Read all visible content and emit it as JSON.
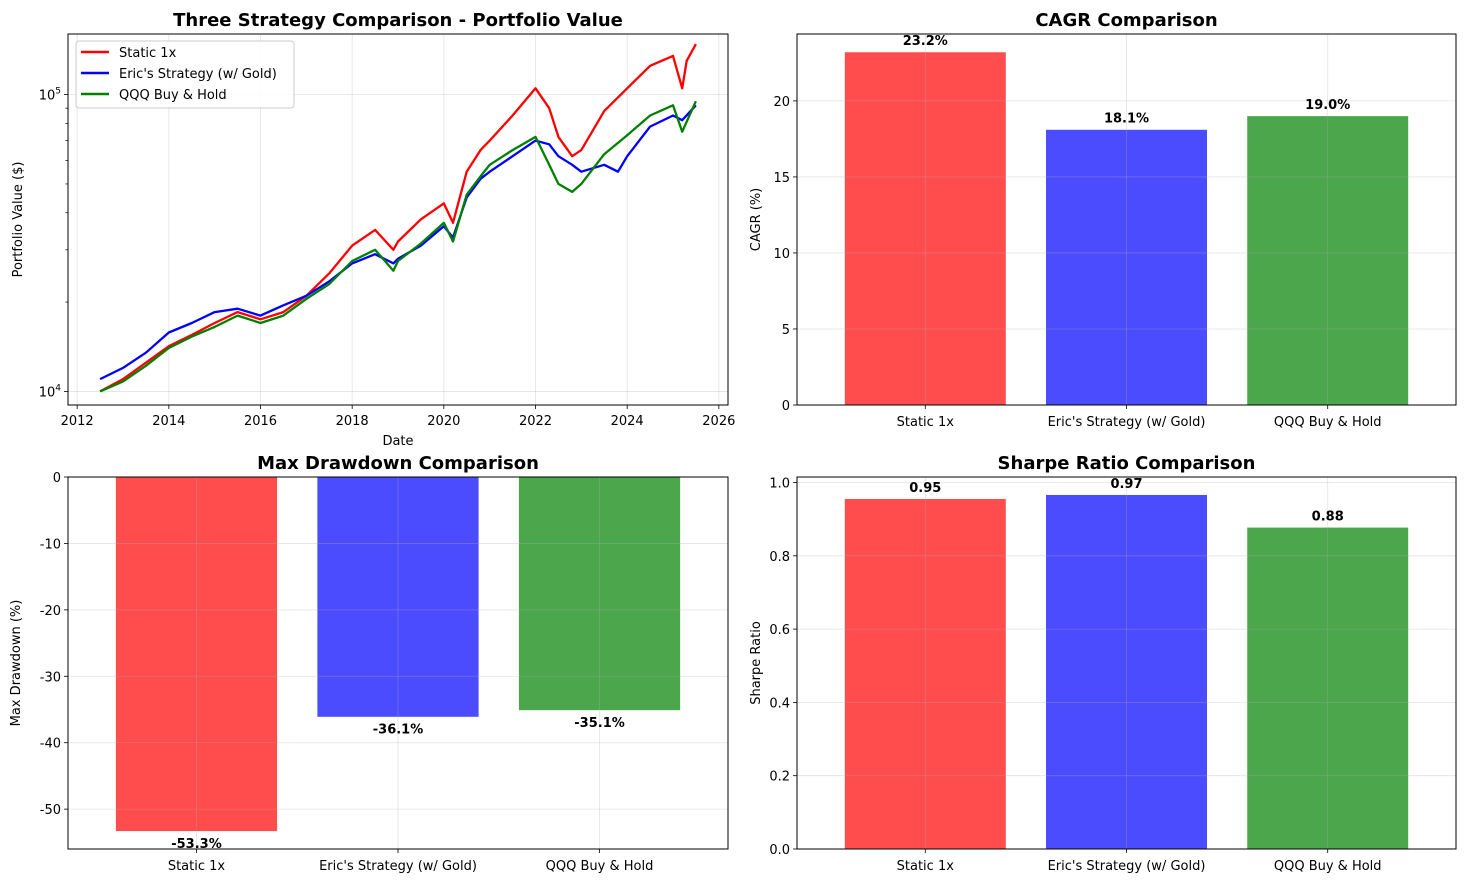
{
  "chart_data": [
    {
      "type": "line",
      "title": "Three Strategy Comparison - Portfolio Value",
      "xlabel": "Date",
      "ylabel": "Portfolio Value ($)",
      "yscale": "log",
      "xlim": [
        2011.8,
        2026.2
      ],
      "ylim": [
        9000,
        160000
      ],
      "xticks": [
        "2012",
        "2014",
        "2016",
        "2018",
        "2020",
        "2022",
        "2024",
        "2026"
      ],
      "yticks": [
        {
          "value": 10000,
          "base": "10",
          "exp": "4"
        },
        {
          "value": 100000,
          "base": "10",
          "exp": "5"
        }
      ],
      "grid": true,
      "legend_position": "upper-left",
      "series": [
        {
          "name": "Static 1x",
          "color": "#ff0000",
          "x": [
            2012.5,
            2013.0,
            2013.5,
            2014.0,
            2014.5,
            2015.0,
            2015.5,
            2016.0,
            2016.5,
            2017.0,
            2017.5,
            2018.0,
            2018.5,
            2018.9,
            2019.0,
            2019.5,
            2020.0,
            2020.2,
            2020.5,
            2020.8,
            2021.0,
            2021.5,
            2022.0,
            2022.3,
            2022.5,
            2022.8,
            2023.0,
            2023.5,
            2024.0,
            2024.5,
            2025.0,
            2025.2,
            2025.3,
            2025.5
          ],
          "y": [
            10000,
            11000,
            12500,
            14200,
            15500,
            17000,
            18500,
            17500,
            18500,
            21000,
            25000,
            31000,
            35000,
            30000,
            32000,
            38000,
            43000,
            37000,
            55000,
            65000,
            70000,
            85000,
            105000,
            90000,
            72000,
            62000,
            65000,
            88000,
            105000,
            125000,
            135000,
            105000,
            130000,
            148000
          ]
        },
        {
          "name": "Eric's Strategy (w/ Gold)",
          "color": "#0000ff",
          "x": [
            2012.5,
            2013.0,
            2013.5,
            2014.0,
            2014.5,
            2015.0,
            2015.5,
            2016.0,
            2016.5,
            2017.0,
            2017.5,
            2018.0,
            2018.5,
            2018.9,
            2019.0,
            2019.5,
            2020.0,
            2020.2,
            2020.5,
            2020.8,
            2021.0,
            2021.5,
            2022.0,
            2022.3,
            2022.5,
            2022.8,
            2023.0,
            2023.5,
            2023.8,
            2024.0,
            2024.5,
            2025.0,
            2025.2,
            2025.5
          ],
          "y": [
            11000,
            12000,
            13500,
            15800,
            17000,
            18500,
            19000,
            18000,
            19500,
            21000,
            23500,
            27000,
            29000,
            27000,
            28000,
            31000,
            36000,
            33000,
            45000,
            52000,
            55000,
            62000,
            70000,
            68000,
            62000,
            58000,
            55000,
            58000,
            55000,
            62000,
            78000,
            85000,
            82000,
            92000
          ]
        },
        {
          "name": "QQQ Buy & Hold",
          "color": "#008000",
          "x": [
            2012.5,
            2013.0,
            2013.5,
            2014.0,
            2014.5,
            2015.0,
            2015.5,
            2016.0,
            2016.5,
            2017.0,
            2017.5,
            2018.0,
            2018.5,
            2018.9,
            2019.0,
            2019.5,
            2020.0,
            2020.2,
            2020.5,
            2020.8,
            2021.0,
            2021.5,
            2022.0,
            2022.3,
            2022.5,
            2022.8,
            2023.0,
            2023.5,
            2024.0,
            2024.5,
            2025.0,
            2025.2,
            2025.5
          ],
          "y": [
            10000,
            10800,
            12200,
            14000,
            15300,
            16500,
            18000,
            17000,
            18000,
            20500,
            23000,
            27500,
            30000,
            25500,
            27500,
            31500,
            37000,
            32000,
            46000,
            53000,
            58000,
            65000,
            72000,
            58000,
            50000,
            47000,
            50000,
            63000,
            73000,
            85000,
            92000,
            75000,
            95000
          ]
        }
      ]
    },
    {
      "type": "bar",
      "title": "CAGR Comparison",
      "xlabel": "",
      "ylabel": "CAGR (%)",
      "ylim": [
        0,
        24.4
      ],
      "yticks": [
        0,
        5,
        10,
        15,
        20
      ],
      "categories": [
        "Static 1x",
        "Eric's Strategy (w/ Gold)",
        "QQQ Buy & Hold"
      ],
      "values": [
        23.2,
        18.1,
        19.0
      ],
      "value_labels": [
        "23.2%",
        "18.1%",
        "19.0%"
      ],
      "colors": [
        "#ff0000",
        "#0000ff",
        "#008000"
      ],
      "grid": true
    },
    {
      "type": "bar",
      "title": "Max Drawdown Comparison",
      "xlabel": "",
      "ylabel": "Max Drawdown (%)",
      "ylim": [
        -56.0,
        0
      ],
      "yticks": [
        0,
        -10,
        -20,
        -30,
        -40,
        -50
      ],
      "categories": [
        "Static 1x",
        "Eric's Strategy (w/ Gold)",
        "QQQ Buy & Hold"
      ],
      "values": [
        -53.3,
        -36.1,
        -35.1
      ],
      "value_labels": [
        "-53.3%",
        "-36.1%",
        "-35.1%"
      ],
      "colors": [
        "#ff0000",
        "#0000ff",
        "#008000"
      ],
      "grid": true
    },
    {
      "type": "bar",
      "title": "Sharpe Ratio Comparison",
      "xlabel": "",
      "ylabel": "Sharpe Ratio",
      "ylim": [
        0,
        1.015
      ],
      "yticks": [
        "0.0",
        "0.2",
        "0.4",
        "0.6",
        "0.8",
        "1.0"
      ],
      "categories": [
        "Static 1x",
        "Eric's Strategy (w/ Gold)",
        "QQQ Buy & Hold"
      ],
      "values": [
        0.955,
        0.966,
        0.877
      ],
      "value_labels": [
        "0.95",
        "0.97",
        "0.88"
      ],
      "colors": [
        "#ff0000",
        "#0000ff",
        "#008000"
      ],
      "grid": true
    }
  ]
}
